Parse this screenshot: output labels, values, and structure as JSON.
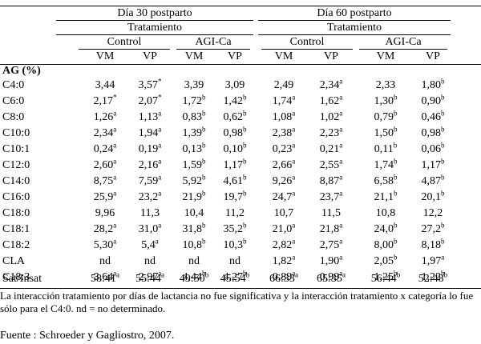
{
  "table": {
    "groups": [
      {
        "label": "Día 30 postparto"
      },
      {
        "label": "Día 60 postparto"
      }
    ],
    "treatment_label": "Tratamiento",
    "treatments": [
      "Control",
      "AGI-Ca",
      "Control",
      "AGI-Ca"
    ],
    "categories": [
      "VM",
      "VP",
      "VM",
      "VP",
      "VM",
      "VP",
      "VM",
      "VP"
    ],
    "section_label": "AG (%)",
    "rows": [
      {
        "label": "C4:0",
        "cells": [
          "3,44",
          "3,57*",
          "3,39",
          "3,09",
          "2,49",
          "2,34a",
          "2,33",
          "1,80b"
        ]
      },
      {
        "label": "C6:0",
        "cells": [
          "2,17*",
          "2,07*",
          "1,72b",
          "1,42b",
          "1,74a",
          "1,62a",
          "1,30b",
          "0,90b"
        ]
      },
      {
        "label": "C8:0",
        "cells": [
          "1,26a",
          "1,13a",
          "0,83b",
          "0,62b",
          "1,08a",
          "1,02a",
          "0,79b",
          "0,46b"
        ]
      },
      {
        "label": "C10:0",
        "cells": [
          "2,34a",
          "1,94a",
          "1,39b",
          "0,98b",
          "2,38a",
          "2,23a",
          "1,50b",
          "0,98b"
        ]
      },
      {
        "label": "C10:1",
        "cells": [
          "0,24a",
          "0,19a",
          "0,13b",
          "0,10b",
          "0,23a",
          "0,21a",
          "0,11b",
          "0,06b"
        ]
      },
      {
        "label": "C12:0",
        "cells": [
          "2,60a",
          "2,16a",
          "1,59b",
          "1,17b",
          "2,66a",
          "2,55a",
          "1,74b",
          "1,17b"
        ]
      },
      {
        "label": "C14:0",
        "cells": [
          "8,75a",
          "7,59a",
          "5,92b",
          "4,61b",
          "9,26a",
          "8,87a",
          "6,58b",
          "4,87b"
        ]
      },
      {
        "label": "C16:0",
        "cells": [
          "25,9a",
          "23,2a",
          "21,9b",
          "19,7b",
          "24,7a",
          "23,7a",
          "21,1b",
          "20,1b"
        ]
      },
      {
        "label": "C18:0",
        "cells": [
          "9,96",
          "11,3",
          "10,4",
          "11,2",
          "10,7",
          "11,5",
          "10,8",
          "12,2"
        ]
      },
      {
        "label": "C18:1",
        "cells": [
          "28,2a",
          "31,0a",
          "31,8b",
          "35,2b",
          "21,0a",
          "21,8a",
          "24,0b",
          "27,2b"
        ]
      },
      {
        "label": "C18:2",
        "cells": [
          "5,30a",
          "5,4a",
          "10,8b",
          "10,3b",
          "2,82a",
          "2,75a",
          "8,00b",
          "8,18b"
        ]
      },
      {
        "label": "CLA",
        "cells": [
          "nd",
          "nd",
          "nd",
          "nd",
          "1,82a",
          "1,90a",
          "2,05b",
          "1,97a"
        ]
      },
      {
        "label": "C18:3",
        "cells": [
          "3,64a",
          "2,97a",
          "4,44b",
          "4,27b",
          "0,89a",
          "0,99a",
          "1,25b",
          "1,22b"
        ]
      }
    ],
    "summary_row": {
      "label": "Sat/Insat",
      "cells": [
        "58:41a",
        "55:44a",
        "49:50b",
        "45:54b",
        "66:33a",
        "65:35a",
        "56:44b",
        "52:48b"
      ]
    }
  },
  "footnote": "La interacción tratamiento por días de lactancia no fue significativa y la interacción tratamiento x categoría lo fue sólo para el C4:0. nd = no determinado.",
  "source": "Fuente : Schroeder y Gagliostro, 2007."
}
